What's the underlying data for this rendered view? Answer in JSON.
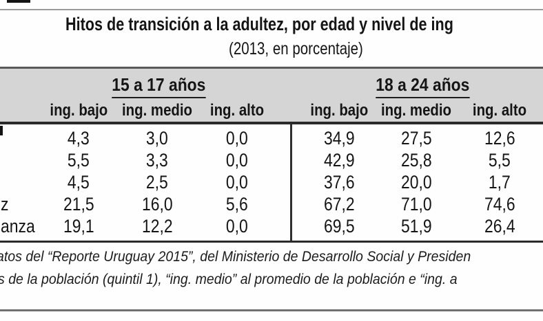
{
  "header": {
    "title": "Hitos de transición a la adultez, por edad y nivel de ing",
    "subtitle": "(2013, en porcentaje)"
  },
  "table": {
    "age_group_headers": [
      {
        "label": "15 a 17 años"
      },
      {
        "label": "18 a 24 años"
      }
    ],
    "income_subheaders": [
      "ing. bajo",
      "ing. medio",
      "ing. alto",
      "ing. bajo",
      "ing. medio",
      "ing. alto"
    ],
    "rows": [
      {
        "label": "",
        "values": [
          "4,3",
          "3,0",
          "0,0",
          "34,9",
          "27,5",
          "12,6"
        ]
      },
      {
        "label": "",
        "values": [
          "5,5",
          "3,3",
          "0,0",
          "42,9",
          "25,8",
          "5,5"
        ]
      },
      {
        "label": "",
        "values": [
          "4,5",
          "2,5",
          "0,0",
          "37,6",
          "20,0",
          "1,7"
        ]
      },
      {
        "label": "z",
        "values": [
          "21,5",
          "16,0",
          "5,6",
          "67,2",
          "71,0",
          "74,6"
        ]
      },
      {
        "label": "anza",
        "values": [
          "19,1",
          "12,2",
          "0,0",
          "69,5",
          "51,9",
          "26,4"
        ]
      }
    ]
  },
  "footnotes": [
    "atos del “Reporte Uruguay 2015”, del Ministerio de Desarrollo Social y Presiden",
    "s de la población (quintil 1), “ing. medio” al promedio de la población e “ing. a"
  ],
  "colors": {
    "header_band": "#d5d5d5",
    "rule_dark": "#2a2a2a",
    "rule_medium": "#5a5a5a",
    "rule_light": "#9a9a9a",
    "text": "#151515"
  }
}
